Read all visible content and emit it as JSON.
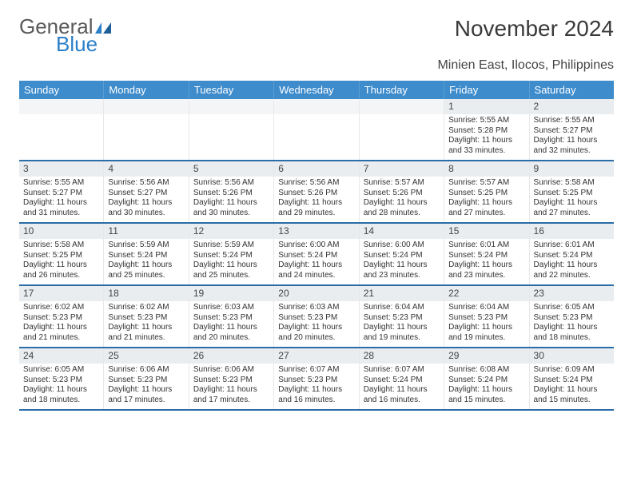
{
  "brand": {
    "part1": "General",
    "part2": "Blue"
  },
  "title": "November 2024",
  "location": "Minien East, Ilocos, Philippines",
  "colors": {
    "header_bg": "#3e8ccc",
    "header_text": "#ffffff",
    "row_separator": "#2b6da8",
    "daynum_bg": "#e9edef",
    "body_text": "#333333",
    "title_text": "#3a3a3a",
    "logo_gray": "#5a5a5a",
    "logo_blue": "#2b7fc9"
  },
  "weekdays": [
    "Sunday",
    "Monday",
    "Tuesday",
    "Wednesday",
    "Thursday",
    "Friday",
    "Saturday"
  ],
  "weeks": [
    [
      {
        "n": "",
        "sunrise": "",
        "sunset": "",
        "daylight": ""
      },
      {
        "n": "",
        "sunrise": "",
        "sunset": "",
        "daylight": ""
      },
      {
        "n": "",
        "sunrise": "",
        "sunset": "",
        "daylight": ""
      },
      {
        "n": "",
        "sunrise": "",
        "sunset": "",
        "daylight": ""
      },
      {
        "n": "",
        "sunrise": "",
        "sunset": "",
        "daylight": ""
      },
      {
        "n": "1",
        "sunrise": "Sunrise: 5:55 AM",
        "sunset": "Sunset: 5:28 PM",
        "daylight": "Daylight: 11 hours and 33 minutes."
      },
      {
        "n": "2",
        "sunrise": "Sunrise: 5:55 AM",
        "sunset": "Sunset: 5:27 PM",
        "daylight": "Daylight: 11 hours and 32 minutes."
      }
    ],
    [
      {
        "n": "3",
        "sunrise": "Sunrise: 5:55 AM",
        "sunset": "Sunset: 5:27 PM",
        "daylight": "Daylight: 11 hours and 31 minutes."
      },
      {
        "n": "4",
        "sunrise": "Sunrise: 5:56 AM",
        "sunset": "Sunset: 5:27 PM",
        "daylight": "Daylight: 11 hours and 30 minutes."
      },
      {
        "n": "5",
        "sunrise": "Sunrise: 5:56 AM",
        "sunset": "Sunset: 5:26 PM",
        "daylight": "Daylight: 11 hours and 30 minutes."
      },
      {
        "n": "6",
        "sunrise": "Sunrise: 5:56 AM",
        "sunset": "Sunset: 5:26 PM",
        "daylight": "Daylight: 11 hours and 29 minutes."
      },
      {
        "n": "7",
        "sunrise": "Sunrise: 5:57 AM",
        "sunset": "Sunset: 5:26 PM",
        "daylight": "Daylight: 11 hours and 28 minutes."
      },
      {
        "n": "8",
        "sunrise": "Sunrise: 5:57 AM",
        "sunset": "Sunset: 5:25 PM",
        "daylight": "Daylight: 11 hours and 27 minutes."
      },
      {
        "n": "9",
        "sunrise": "Sunrise: 5:58 AM",
        "sunset": "Sunset: 5:25 PM",
        "daylight": "Daylight: 11 hours and 27 minutes."
      }
    ],
    [
      {
        "n": "10",
        "sunrise": "Sunrise: 5:58 AM",
        "sunset": "Sunset: 5:25 PM",
        "daylight": "Daylight: 11 hours and 26 minutes."
      },
      {
        "n": "11",
        "sunrise": "Sunrise: 5:59 AM",
        "sunset": "Sunset: 5:24 PM",
        "daylight": "Daylight: 11 hours and 25 minutes."
      },
      {
        "n": "12",
        "sunrise": "Sunrise: 5:59 AM",
        "sunset": "Sunset: 5:24 PM",
        "daylight": "Daylight: 11 hours and 25 minutes."
      },
      {
        "n": "13",
        "sunrise": "Sunrise: 6:00 AM",
        "sunset": "Sunset: 5:24 PM",
        "daylight": "Daylight: 11 hours and 24 minutes."
      },
      {
        "n": "14",
        "sunrise": "Sunrise: 6:00 AM",
        "sunset": "Sunset: 5:24 PM",
        "daylight": "Daylight: 11 hours and 23 minutes."
      },
      {
        "n": "15",
        "sunrise": "Sunrise: 6:01 AM",
        "sunset": "Sunset: 5:24 PM",
        "daylight": "Daylight: 11 hours and 23 minutes."
      },
      {
        "n": "16",
        "sunrise": "Sunrise: 6:01 AM",
        "sunset": "Sunset: 5:24 PM",
        "daylight": "Daylight: 11 hours and 22 minutes."
      }
    ],
    [
      {
        "n": "17",
        "sunrise": "Sunrise: 6:02 AM",
        "sunset": "Sunset: 5:23 PM",
        "daylight": "Daylight: 11 hours and 21 minutes."
      },
      {
        "n": "18",
        "sunrise": "Sunrise: 6:02 AM",
        "sunset": "Sunset: 5:23 PM",
        "daylight": "Daylight: 11 hours and 21 minutes."
      },
      {
        "n": "19",
        "sunrise": "Sunrise: 6:03 AM",
        "sunset": "Sunset: 5:23 PM",
        "daylight": "Daylight: 11 hours and 20 minutes."
      },
      {
        "n": "20",
        "sunrise": "Sunrise: 6:03 AM",
        "sunset": "Sunset: 5:23 PM",
        "daylight": "Daylight: 11 hours and 20 minutes."
      },
      {
        "n": "21",
        "sunrise": "Sunrise: 6:04 AM",
        "sunset": "Sunset: 5:23 PM",
        "daylight": "Daylight: 11 hours and 19 minutes."
      },
      {
        "n": "22",
        "sunrise": "Sunrise: 6:04 AM",
        "sunset": "Sunset: 5:23 PM",
        "daylight": "Daylight: 11 hours and 19 minutes."
      },
      {
        "n": "23",
        "sunrise": "Sunrise: 6:05 AM",
        "sunset": "Sunset: 5:23 PM",
        "daylight": "Daylight: 11 hours and 18 minutes."
      }
    ],
    [
      {
        "n": "24",
        "sunrise": "Sunrise: 6:05 AM",
        "sunset": "Sunset: 5:23 PM",
        "daylight": "Daylight: 11 hours and 18 minutes."
      },
      {
        "n": "25",
        "sunrise": "Sunrise: 6:06 AM",
        "sunset": "Sunset: 5:23 PM",
        "daylight": "Daylight: 11 hours and 17 minutes."
      },
      {
        "n": "26",
        "sunrise": "Sunrise: 6:06 AM",
        "sunset": "Sunset: 5:23 PM",
        "daylight": "Daylight: 11 hours and 17 minutes."
      },
      {
        "n": "27",
        "sunrise": "Sunrise: 6:07 AM",
        "sunset": "Sunset: 5:23 PM",
        "daylight": "Daylight: 11 hours and 16 minutes."
      },
      {
        "n": "28",
        "sunrise": "Sunrise: 6:07 AM",
        "sunset": "Sunset: 5:24 PM",
        "daylight": "Daylight: 11 hours and 16 minutes."
      },
      {
        "n": "29",
        "sunrise": "Sunrise: 6:08 AM",
        "sunset": "Sunset: 5:24 PM",
        "daylight": "Daylight: 11 hours and 15 minutes."
      },
      {
        "n": "30",
        "sunrise": "Sunrise: 6:09 AM",
        "sunset": "Sunset: 5:24 PM",
        "daylight": "Daylight: 11 hours and 15 minutes."
      }
    ]
  ]
}
